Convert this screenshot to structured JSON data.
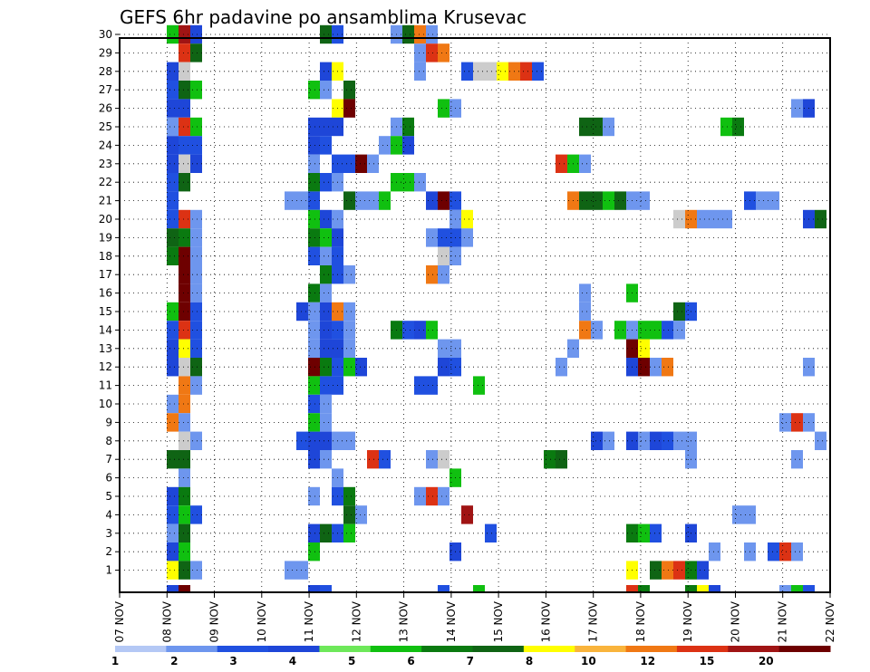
{
  "chart_data": {
    "type": "heatmap",
    "title": "GEFS 6hr padavine po ansamblima Krusevac",
    "xlabel": "",
    "ylabel": "",
    "x_tick_labels": [
      "07 NOV",
      "08 NOV",
      "09 NOV",
      "10 NOV",
      "11 NOV",
      "12 NOV",
      "13 NOV",
      "14 NOV",
      "15 NOV",
      "16 NOV",
      "17 NOV",
      "18 NOV",
      "19 NOV",
      "20 NOV",
      "21 NOV",
      "22 NOV"
    ],
    "x_step_hours": 6,
    "members": 30,
    "grid": true,
    "colorbar": {
      "labels": [
        "1",
        "2",
        "3",
        "4",
        "5",
        "6",
        "7",
        "8",
        "10",
        "12",
        "15",
        "20"
      ],
      "colors": [
        "#b4c8f5",
        "#6e96ee",
        "#2050e0",
        "#1e46d8",
        "#6ee85a",
        "#10c010",
        "#0a7a10",
        "#0f6414",
        "#ffff00",
        "#f9b43c",
        "#f07814",
        "#dc3214",
        "#a01414",
        "#6e0000"
      ]
    },
    "cells": [
      [
        30,
        4,
        5
      ],
      [
        30,
        5,
        12
      ],
      [
        30,
        6,
        3
      ],
      [
        30,
        17,
        7
      ],
      [
        30,
        18,
        2
      ],
      [
        30,
        23,
        1
      ],
      [
        30,
        24,
        7
      ],
      [
        30,
        25,
        10
      ],
      [
        30,
        26,
        1
      ],
      [
        29,
        5,
        11
      ],
      [
        29,
        6,
        7
      ],
      [
        29,
        25,
        1
      ],
      [
        29,
        26,
        11
      ],
      [
        29,
        27,
        10
      ],
      [
        28,
        4,
        3
      ],
      [
        28,
        5,
        14
      ],
      [
        28,
        17,
        3
      ],
      [
        28,
        18,
        8
      ],
      [
        28,
        25,
        1
      ],
      [
        28,
        29,
        2
      ],
      [
        28,
        30,
        14
      ],
      [
        28,
        31,
        14
      ],
      [
        28,
        32,
        8
      ],
      [
        28,
        33,
        10
      ],
      [
        28,
        34,
        11
      ],
      [
        28,
        35,
        2
      ],
      [
        27,
        4,
        2
      ],
      [
        27,
        5,
        7
      ],
      [
        27,
        6,
        5
      ],
      [
        27,
        16,
        5
      ],
      [
        27,
        17,
        1
      ],
      [
        27,
        19,
        7
      ],
      [
        26,
        4,
        3
      ],
      [
        26,
        5,
        3
      ],
      [
        26,
        18,
        8
      ],
      [
        26,
        19,
        13
      ],
      [
        26,
        27,
        5
      ],
      [
        26,
        28,
        1
      ],
      [
        26,
        57,
        1
      ],
      [
        26,
        58,
        3
      ],
      [
        25,
        4,
        1
      ],
      [
        25,
        5,
        11
      ],
      [
        25,
        6,
        5
      ],
      [
        25,
        16,
        3
      ],
      [
        25,
        17,
        3
      ],
      [
        25,
        18,
        3
      ],
      [
        25,
        23,
        1
      ],
      [
        25,
        24,
        6
      ],
      [
        25,
        39,
        7
      ],
      [
        25,
        40,
        7
      ],
      [
        25,
        41,
        1
      ],
      [
        25,
        51,
        5
      ],
      [
        25,
        52,
        6
      ],
      [
        24,
        4,
        3
      ],
      [
        24,
        5,
        2
      ],
      [
        24,
        6,
        2
      ],
      [
        24,
        16,
        3
      ],
      [
        24,
        17,
        2
      ],
      [
        24,
        22,
        1
      ],
      [
        24,
        23,
        5
      ],
      [
        24,
        24,
        3
      ],
      [
        23,
        4,
        3
      ],
      [
        23,
        5,
        14
      ],
      [
        23,
        6,
        3
      ],
      [
        23,
        16,
        1
      ],
      [
        23,
        18,
        2
      ],
      [
        23,
        19,
        2
      ],
      [
        23,
        20,
        13
      ],
      [
        23,
        21,
        1
      ],
      [
        23,
        37,
        11
      ],
      [
        23,
        38,
        5
      ],
      [
        23,
        39,
        1
      ],
      [
        22,
        4,
        2
      ],
      [
        22,
        5,
        7
      ],
      [
        22,
        16,
        6
      ],
      [
        22,
        17,
        2
      ],
      [
        22,
        18,
        1
      ],
      [
        22,
        23,
        5
      ],
      [
        22,
        24,
        5
      ],
      [
        22,
        25,
        1
      ],
      [
        21,
        4,
        2
      ],
      [
        21,
        14,
        1
      ],
      [
        21,
        15,
        1
      ],
      [
        21,
        16,
        2
      ],
      [
        21,
        19,
        7
      ],
      [
        21,
        20,
        1
      ],
      [
        21,
        21,
        1
      ],
      [
        21,
        22,
        5
      ],
      [
        21,
        26,
        3
      ],
      [
        21,
        27,
        13
      ],
      [
        21,
        28,
        2
      ],
      [
        21,
        38,
        10
      ],
      [
        21,
        39,
        7
      ],
      [
        21,
        40,
        7
      ],
      [
        21,
        41,
        5
      ],
      [
        21,
        42,
        7
      ],
      [
        21,
        43,
        1
      ],
      [
        21,
        44,
        1
      ],
      [
        21,
        53,
        2
      ],
      [
        21,
        54,
        1
      ],
      [
        21,
        55,
        1
      ],
      [
        20,
        4,
        2
      ],
      [
        20,
        5,
        11
      ],
      [
        20,
        6,
        1
      ],
      [
        20,
        16,
        5
      ],
      [
        20,
        17,
        3
      ],
      [
        20,
        18,
        1
      ],
      [
        20,
        28,
        1
      ],
      [
        20,
        29,
        8
      ],
      [
        20,
        47,
        14
      ],
      [
        20,
        48,
        10
      ],
      [
        20,
        49,
        1
      ],
      [
        20,
        50,
        1
      ],
      [
        20,
        51,
        1
      ],
      [
        20,
        58,
        3
      ],
      [
        20,
        59,
        7
      ],
      [
        19,
        4,
        7
      ],
      [
        19,
        5,
        6
      ],
      [
        19,
        6,
        1
      ],
      [
        19,
        16,
        6
      ],
      [
        19,
        17,
        5
      ],
      [
        19,
        18,
        3
      ],
      [
        19,
        26,
        1
      ],
      [
        19,
        27,
        2
      ],
      [
        19,
        28,
        2
      ],
      [
        19,
        29,
        1
      ],
      [
        18,
        4,
        6
      ],
      [
        18,
        5,
        13
      ],
      [
        18,
        6,
        1
      ],
      [
        18,
        16,
        2
      ],
      [
        18,
        17,
        1
      ],
      [
        18,
        18,
        2
      ],
      [
        18,
        27,
        14
      ],
      [
        18,
        28,
        1
      ],
      [
        17,
        5,
        13
      ],
      [
        17,
        6,
        1
      ],
      [
        17,
        17,
        6
      ],
      [
        17,
        18,
        2
      ],
      [
        17,
        19,
        1
      ],
      [
        17,
        26,
        10
      ],
      [
        17,
        27,
        1
      ],
      [
        16,
        5,
        13
      ],
      [
        16,
        6,
        1
      ],
      [
        16,
        16,
        6
      ],
      [
        16,
        17,
        1
      ],
      [
        16,
        39,
        1
      ],
      [
        16,
        43,
        5
      ],
      [
        15,
        4,
        5
      ],
      [
        15,
        5,
        13
      ],
      [
        15,
        6,
        2
      ],
      [
        15,
        15,
        3
      ],
      [
        15,
        16,
        1
      ],
      [
        15,
        17,
        3
      ],
      [
        15,
        18,
        10
      ],
      [
        15,
        19,
        1
      ],
      [
        15,
        39,
        1
      ],
      [
        15,
        47,
        7
      ],
      [
        15,
        48,
        2
      ],
      [
        14,
        4,
        2
      ],
      [
        14,
        5,
        11
      ],
      [
        14,
        6,
        2
      ],
      [
        14,
        16,
        1
      ],
      [
        14,
        17,
        3
      ],
      [
        14,
        18,
        2
      ],
      [
        14,
        19,
        1
      ],
      [
        14,
        23,
        6
      ],
      [
        14,
        24,
        2
      ],
      [
        14,
        25,
        3
      ],
      [
        14,
        26,
        5
      ],
      [
        14,
        39,
        10
      ],
      [
        14,
        40,
        1
      ],
      [
        14,
        42,
        5
      ],
      [
        14,
        43,
        1
      ],
      [
        14,
        44,
        5
      ],
      [
        14,
        45,
        5
      ],
      [
        14,
        46,
        2
      ],
      [
        14,
        47,
        1
      ],
      [
        13,
        4,
        3
      ],
      [
        13,
        5,
        8
      ],
      [
        13,
        6,
        2
      ],
      [
        13,
        16,
        1
      ],
      [
        13,
        17,
        3
      ],
      [
        13,
        18,
        3
      ],
      [
        13,
        19,
        1
      ],
      [
        13,
        27,
        1
      ],
      [
        13,
        28,
        1
      ],
      [
        13,
        38,
        1
      ],
      [
        13,
        43,
        13
      ],
      [
        13,
        44,
        8
      ],
      [
        12,
        4,
        3
      ],
      [
        12,
        5,
        14
      ],
      [
        12,
        6,
        7
      ],
      [
        12,
        16,
        13
      ],
      [
        12,
        17,
        6
      ],
      [
        12,
        18,
        2
      ],
      [
        12,
        19,
        5
      ],
      [
        12,
        20,
        3
      ],
      [
        12,
        27,
        3
      ],
      [
        12,
        28,
        2
      ],
      [
        12,
        37,
        1
      ],
      [
        12,
        43,
        3
      ],
      [
        12,
        44,
        13
      ],
      [
        12,
        45,
        1
      ],
      [
        12,
        46,
        10
      ],
      [
        12,
        58,
        1
      ],
      [
        11,
        5,
        10
      ],
      [
        11,
        6,
        1
      ],
      [
        11,
        16,
        5
      ],
      [
        11,
        17,
        2
      ],
      [
        11,
        18,
        2
      ],
      [
        11,
        25,
        2
      ],
      [
        11,
        26,
        2
      ],
      [
        11,
        30,
        5
      ],
      [
        10,
        4,
        1
      ],
      [
        10,
        5,
        10
      ],
      [
        10,
        16,
        2
      ],
      [
        10,
        17,
        1
      ],
      [
        9,
        4,
        10
      ],
      [
        9,
        5,
        1
      ],
      [
        9,
        16,
        5
      ],
      [
        9,
        17,
        1
      ],
      [
        9,
        56,
        1
      ],
      [
        9,
        57,
        11
      ],
      [
        9,
        58,
        1
      ],
      [
        8,
        5,
        14
      ],
      [
        8,
        6,
        1
      ],
      [
        8,
        15,
        2
      ],
      [
        8,
        16,
        3
      ],
      [
        8,
        17,
        3
      ],
      [
        8,
        18,
        1
      ],
      [
        8,
        19,
        1
      ],
      [
        8,
        40,
        3
      ],
      [
        8,
        41,
        1
      ],
      [
        8,
        43,
        3
      ],
      [
        8,
        44,
        1
      ],
      [
        8,
        45,
        3
      ],
      [
        8,
        46,
        2
      ],
      [
        8,
        47,
        1
      ],
      [
        8,
        48,
        1
      ],
      [
        8,
        59,
        1
      ],
      [
        7,
        4,
        7
      ],
      [
        7,
        5,
        7
      ],
      [
        7,
        16,
        3
      ],
      [
        7,
        17,
        1
      ],
      [
        7,
        21,
        11
      ],
      [
        7,
        22,
        2
      ],
      [
        7,
        26,
        1
      ],
      [
        7,
        27,
        14
      ],
      [
        7,
        36,
        6
      ],
      [
        7,
        37,
        7
      ],
      [
        7,
        48,
        1
      ],
      [
        7,
        57,
        1
      ],
      [
        6,
        5,
        1
      ],
      [
        6,
        18,
        1
      ],
      [
        6,
        28,
        5
      ],
      [
        5,
        4,
        3
      ],
      [
        5,
        5,
        6
      ],
      [
        5,
        16,
        1
      ],
      [
        5,
        18,
        2
      ],
      [
        5,
        19,
        6
      ],
      [
        5,
        25,
        1
      ],
      [
        5,
        26,
        11
      ],
      [
        5,
        27,
        1
      ],
      [
        4,
        4,
        2
      ],
      [
        4,
        5,
        5
      ],
      [
        4,
        6,
        2
      ],
      [
        4,
        19,
        7
      ],
      [
        4,
        20,
        1
      ],
      [
        4,
        29,
        12
      ],
      [
        4,
        52,
        1
      ],
      [
        4,
        53,
        1
      ],
      [
        3,
        4,
        1
      ],
      [
        3,
        5,
        7
      ],
      [
        3,
        16,
        3
      ],
      [
        3,
        17,
        7
      ],
      [
        3,
        18,
        2
      ],
      [
        3,
        19,
        5
      ],
      [
        3,
        31,
        2
      ],
      [
        3,
        43,
        6
      ],
      [
        3,
        44,
        5
      ],
      [
        3,
        45,
        2
      ],
      [
        3,
        48,
        3
      ],
      [
        2,
        4,
        3
      ],
      [
        2,
        5,
        5
      ],
      [
        2,
        16,
        5
      ],
      [
        2,
        28,
        3
      ],
      [
        2,
        50,
        1
      ],
      [
        2,
        53,
        1
      ],
      [
        2,
        55,
        2
      ],
      [
        2,
        56,
        11
      ],
      [
        2,
        57,
        1
      ],
      [
        1,
        4,
        8
      ],
      [
        1,
        5,
        7
      ],
      [
        1,
        6,
        1
      ],
      [
        1,
        14,
        1
      ],
      [
        1,
        15,
        1
      ],
      [
        1,
        43,
        8
      ],
      [
        1,
        45,
        7
      ],
      [
        1,
        46,
        10
      ],
      [
        1,
        47,
        11
      ],
      [
        1,
        48,
        6
      ],
      [
        1,
        49,
        3
      ],
      [
        0,
        4,
        3
      ],
      [
        0,
        5,
        13
      ],
      [
        0,
        16,
        3
      ],
      [
        0,
        17,
        2
      ],
      [
        0,
        27,
        2
      ],
      [
        0,
        30,
        5
      ],
      [
        0,
        43,
        11
      ],
      [
        0,
        44,
        6
      ],
      [
        0,
        48,
        6
      ],
      [
        0,
        49,
        8
      ],
      [
        0,
        50,
        3
      ],
      [
        0,
        56,
        1
      ],
      [
        0,
        57,
        5
      ],
      [
        0,
        58,
        2
      ]
    ]
  }
}
